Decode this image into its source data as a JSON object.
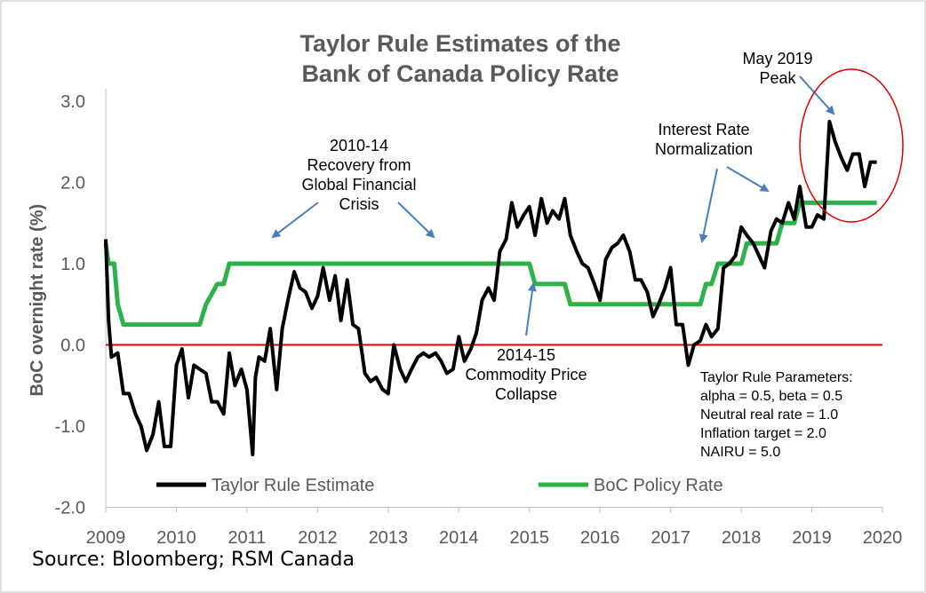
{
  "chart_data": {
    "type": "line",
    "title_lines": [
      "Taylor Rule Estimates of the",
      "Bank of Canada Policy Rate"
    ],
    "ylabel": "BoC overnight rate (%)",
    "xlabel": "",
    "xlim": [
      2009,
      2020
    ],
    "ylim": [
      -2.0,
      3.0
    ],
    "xticks": [
      "2009",
      "2010",
      "2011",
      "2012",
      "2013",
      "2014",
      "2015",
      "2016",
      "2017",
      "2018",
      "2019",
      "2020"
    ],
    "yticks": [
      "3.0",
      "2.0",
      "1.0",
      "0.0",
      "-1.0",
      "-2.0"
    ],
    "colors": {
      "taylor": "#000000",
      "policy": "#2db24a",
      "zero": "#e00000",
      "ring": "#e00000",
      "arrow": "#4a7ebb"
    },
    "series": [
      {
        "name": "Taylor Rule Estimate",
        "x": [
          2009.0,
          2009.04,
          2009.08,
          2009.17,
          2009.25,
          2009.33,
          2009.42,
          2009.5,
          2009.58,
          2009.67,
          2009.75,
          2009.83,
          2009.92,
          2010.0,
          2010.08,
          2010.17,
          2010.25,
          2010.33,
          2010.42,
          2010.5,
          2010.58,
          2010.67,
          2010.75,
          2010.83,
          2010.92,
          2011.0,
          2011.08,
          2011.12,
          2011.17,
          2011.25,
          2011.33,
          2011.42,
          2011.5,
          2011.58,
          2011.67,
          2011.75,
          2011.83,
          2011.92,
          2012.0,
          2012.08,
          2012.17,
          2012.25,
          2012.33,
          2012.42,
          2012.5,
          2012.58,
          2012.67,
          2012.75,
          2012.83,
          2012.92,
          2013.0,
          2013.08,
          2013.17,
          2013.25,
          2013.33,
          2013.42,
          2013.5,
          2013.58,
          2013.67,
          2013.75,
          2013.83,
          2013.92,
          2014.0,
          2014.08,
          2014.17,
          2014.25,
          2014.33,
          2014.42,
          2014.5,
          2014.58,
          2014.67,
          2014.75,
          2014.83,
          2014.92,
          2015.0,
          2015.08,
          2015.17,
          2015.25,
          2015.33,
          2015.42,
          2015.5,
          2015.58,
          2015.67,
          2015.75,
          2015.83,
          2015.92,
          2016.0,
          2016.08,
          2016.17,
          2016.25,
          2016.33,
          2016.42,
          2016.5,
          2016.58,
          2016.67,
          2016.75,
          2016.83,
          2016.92,
          2017.0,
          2017.08,
          2017.17,
          2017.25,
          2017.33,
          2017.42,
          2017.5,
          2017.58,
          2017.67,
          2017.75,
          2017.83,
          2017.92,
          2018.0,
          2018.08,
          2018.17,
          2018.25,
          2018.33,
          2018.42,
          2018.5,
          2018.58,
          2018.67,
          2018.75,
          2018.83,
          2018.92,
          2019.0,
          2019.08,
          2019.17,
          2019.25,
          2019.33,
          2019.42,
          2019.5,
          2019.58,
          2019.67,
          2019.75,
          2019.83,
          2019.92
        ],
        "y": [
          1.3,
          0.3,
          -0.15,
          -0.1,
          -0.6,
          -0.6,
          -0.85,
          -1.0,
          -1.3,
          -1.1,
          -0.7,
          -1.25,
          -1.25,
          -0.25,
          -0.05,
          -0.65,
          -0.25,
          -0.3,
          -0.35,
          -0.7,
          -0.7,
          -0.85,
          -0.1,
          -0.5,
          -0.3,
          -0.55,
          -1.35,
          -0.4,
          -0.15,
          -0.2,
          0.2,
          -0.55,
          0.2,
          0.55,
          0.9,
          0.7,
          0.65,
          0.45,
          0.6,
          0.95,
          0.55,
          0.85,
          0.3,
          0.8,
          0.25,
          0.2,
          -0.35,
          -0.45,
          -0.4,
          -0.55,
          -0.6,
          0.0,
          -0.3,
          -0.45,
          -0.3,
          -0.15,
          -0.1,
          -0.15,
          -0.1,
          -0.2,
          -0.35,
          -0.3,
          0.1,
          -0.2,
          -0.05,
          0.15,
          0.55,
          0.7,
          0.55,
          1.15,
          1.3,
          1.75,
          1.45,
          1.6,
          1.7,
          1.35,
          1.8,
          1.5,
          1.65,
          1.55,
          1.8,
          1.35,
          1.15,
          1.0,
          0.95,
          0.75,
          0.55,
          1.05,
          1.2,
          1.25,
          1.35,
          1.15,
          0.8,
          0.8,
          0.65,
          0.35,
          0.5,
          0.7,
          0.95,
          0.25,
          0.25,
          -0.25,
          0.0,
          0.05,
          0.25,
          0.1,
          0.2,
          0.95,
          1.0,
          1.1,
          1.45,
          1.35,
          1.25,
          1.1,
          0.95,
          1.4,
          1.55,
          1.5,
          1.75,
          1.55,
          1.95,
          1.45,
          1.45,
          1.6,
          1.55,
          2.75,
          2.5,
          2.3,
          2.15,
          2.35,
          2.35,
          1.95,
          2.25,
          2.25
        ]
      },
      {
        "name": "BoC Policy Rate",
        "x": [
          2009.0,
          2009.04,
          2009.12,
          2009.17,
          2009.25,
          2010.33,
          2010.42,
          2010.58,
          2010.67,
          2010.75,
          2014.92,
          2015.0,
          2015.08,
          2015.5,
          2015.58,
          2017.42,
          2017.5,
          2017.58,
          2017.67,
          2017.83,
          2018.0,
          2018.08,
          2018.5,
          2018.58,
          2018.75,
          2018.83,
          2018.92,
          2019.92
        ],
        "y": [
          1.25,
          1.0,
          1.0,
          0.5,
          0.25,
          0.25,
          0.5,
          0.75,
          0.75,
          1.0,
          1.0,
          1.0,
          0.75,
          0.75,
          0.5,
          0.5,
          0.75,
          0.75,
          1.0,
          1.0,
          1.0,
          1.25,
          1.25,
          1.5,
          1.5,
          1.75,
          1.75,
          1.75
        ]
      }
    ],
    "legend": [
      "Taylor Rule Estimate",
      "BoC Policy Rate"
    ],
    "annotations": {
      "recovery": [
        "2010-14",
        "Recovery from",
        "Global Financial",
        "Crisis"
      ],
      "commodity": [
        "2014-15",
        "Commodity Price",
        "Collapse"
      ],
      "normalization": [
        "Interest Rate",
        "Normalization"
      ],
      "peak": [
        "May 2019",
        "Peak"
      ],
      "params": [
        "Taylor Rule Parameters:",
        "alpha = 0.5, beta = 0.5",
        "Neutral real rate = 1.0",
        "Inflation target = 2.0",
        "NAIRU = 5.0"
      ]
    }
  },
  "source": "Source: Bloomberg; RSM Canada"
}
